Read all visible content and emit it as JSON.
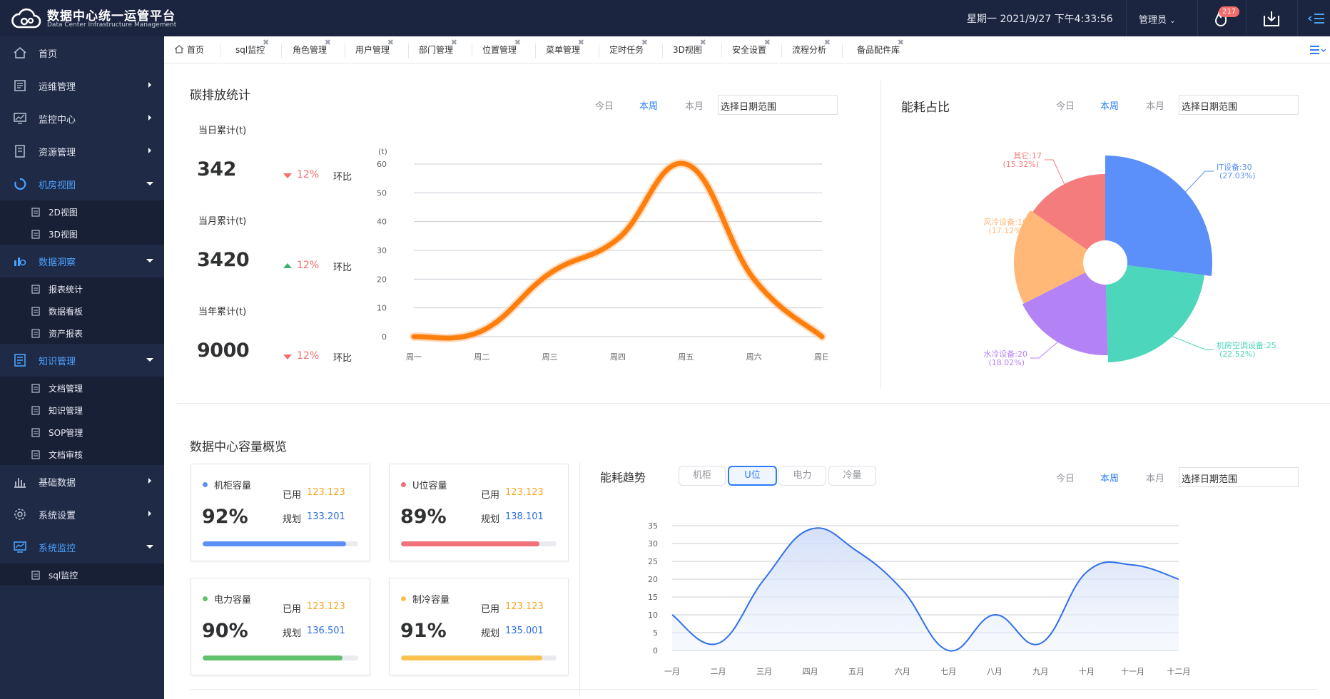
{
  "app": {
    "title": "数据中心统一运管平台",
    "subtitle": "Data Center Infrastructure Management"
  },
  "header": {
    "datetime": "星期一 2021/9/27 下午4:33:56",
    "user": "管理员",
    "notifications": "217"
  },
  "sidebar": {
    "items": [
      {
        "label": "首页",
        "icon": "home-icon"
      },
      {
        "label": "运维管理",
        "icon": "ops-icon"
      },
      {
        "label": "监控中心",
        "icon": "monitor-icon"
      },
      {
        "label": "资源管理",
        "icon": "resource-icon"
      },
      {
        "label": "机房视图",
        "icon": "room-view-icon"
      },
      {
        "label": "数据洞察",
        "icon": "insight-icon"
      },
      {
        "label": "知识管理",
        "icon": "knowledge-icon"
      },
      {
        "label": "基础数据",
        "icon": "basic-data-icon"
      },
      {
        "label": "系统设置",
        "icon": "settings-icon"
      },
      {
        "label": "系统监控",
        "icon": "system-monitor-icon"
      }
    ],
    "sub_room": [
      "2D视图",
      "3D视图"
    ],
    "sub_insight": [
      "报表统计",
      "数据看板",
      "资产报表"
    ],
    "sub_knowledge": [
      "文档管理",
      "知识管理",
      "SOP管理",
      "文档审核"
    ],
    "sub_sysmon": [
      "sql监控"
    ]
  },
  "tabs": [
    "首页",
    "sql监控",
    "角色管理",
    "用户管理",
    "部门管理",
    "位置管理",
    "菜单管理",
    "定时任务",
    "3D视图",
    "安全设置",
    "流程分析",
    "备品配件库"
  ],
  "ranges": {
    "today": "今日",
    "week": "本周",
    "month": "本月",
    "date_placeholder": "选择日期范围"
  },
  "carbon": {
    "title": "碳排放统计",
    "stats": [
      {
        "label": "当日累计(t)",
        "value": "342",
        "trend": "down",
        "pct": "12%",
        "cmp": "环比"
      },
      {
        "label": "当月累计(t)",
        "value": "3420",
        "trend": "up",
        "pct": "12%",
        "cmp": "环比"
      },
      {
        "label": "当年累计(t)",
        "value": "9000",
        "trend": "down",
        "pct": "12%",
        "cmp": "环比"
      }
    ]
  },
  "energy_ratio": {
    "title": "能耗占比"
  },
  "capacity": {
    "title": "数据中心容量概览",
    "used_label": "已用",
    "plan_label": "规划",
    "cards": [
      {
        "name": "机柜容量",
        "percent": "92%",
        "used": "123.123",
        "plan": "133.201",
        "fill": 0.92,
        "color": "#5b8ff9"
      },
      {
        "name": "U位容量",
        "percent": "89%",
        "used": "123.123",
        "plan": "138.101",
        "fill": 0.89,
        "color": "#f1707a"
      },
      {
        "name": "电力容量",
        "percent": "90%",
        "used": "123.123",
        "plan": "136.501",
        "fill": 0.9,
        "color": "#62c26b"
      },
      {
        "name": "制冷容量",
        "percent": "91%",
        "used": "123.123",
        "plan": "135.001",
        "fill": 0.91,
        "color": "#fcc24f"
      }
    ]
  },
  "trend": {
    "title": "能耗趋势",
    "segments": [
      "机柜",
      "U位",
      "电力",
      "冷量"
    ],
    "active_segment": "U位"
  },
  "chart_data": [
    {
      "type": "line",
      "title": "碳排放统计",
      "ylabel": "(t)",
      "x": [
        "周一",
        "周二",
        "周三",
        "周四",
        "周五",
        "周六",
        "周日"
      ],
      "y": [
        0,
        2,
        22,
        34,
        60,
        20,
        0
      ],
      "ylim": [
        0,
        60
      ],
      "yticks": [
        0,
        10,
        20,
        30,
        40,
        50,
        60
      ],
      "color": "#ff7f0e",
      "smooth": true,
      "grid": true
    },
    {
      "type": "pie",
      "title": "能耗占比",
      "variant": "rose-donut",
      "slices": [
        {
          "name": "IT设备",
          "value": 30,
          "percent": "27.03%",
          "color": "#5b8ff9",
          "label": "IT设备:30",
          "pct_label": "(27.03%)"
        },
        {
          "name": "机房空调设备",
          "value": 25,
          "percent": "22.52%",
          "color": "#4cd6bb",
          "label": "机房空调设备:25",
          "pct_label": "(22.52%)"
        },
        {
          "name": "水冷设备",
          "value": 20,
          "percent": "18.02%",
          "color": "#b382f5",
          "label": "水冷设备:20",
          "pct_label": "(18.02%)"
        },
        {
          "name": "风冷设备",
          "value": 19,
          "percent": "17.12%",
          "color": "#ffb877",
          "label": "风冷设备:19",
          "pct_label": "(17.12%)"
        },
        {
          "name": "其它",
          "value": 17,
          "percent": "15.32%",
          "color": "#f57c7c",
          "label": "其它:17",
          "pct_label": "(15.32%)"
        }
      ]
    },
    {
      "type": "area",
      "title": "能耗趋势",
      "x": [
        "一月",
        "二月",
        "三月",
        "四月",
        "五月",
        "六月",
        "七月",
        "八月",
        "九月",
        "十月",
        "十一月",
        "十二月"
      ],
      "y": [
        10,
        2,
        20,
        34,
        28,
        17,
        0,
        10,
        2,
        22,
        24,
        20
      ],
      "ylim": [
        0,
        35
      ],
      "yticks": [
        0,
        5,
        10,
        15,
        20,
        25,
        30,
        35
      ],
      "color": "#2f6fe8",
      "smooth": true,
      "grid": true
    }
  ]
}
